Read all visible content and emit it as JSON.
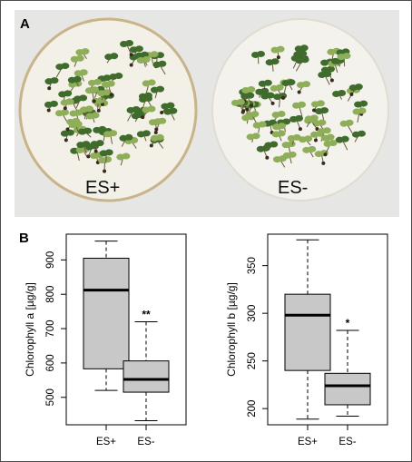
{
  "panels": {
    "a_label": "A",
    "b_label": "B"
  },
  "photo": {
    "left_dish_label": "ES+",
    "right_dish_label": "ES-"
  },
  "colors": {
    "box_fill": "#c8c8c8",
    "line": "#000000",
    "leaf_dark": "#3f6b2c",
    "leaf_light": "#8fae5a",
    "dish": "#f2efe6",
    "background": "#e8e8e8"
  },
  "chart_data": [
    {
      "type": "boxplot",
      "ylabel": "Chlorophyll a [µg/g]",
      "categories": [
        "ES+",
        "ES-"
      ],
      "yticks": [
        500,
        600,
        700,
        800,
        900
      ],
      "ylim": [
        420,
        975
      ],
      "boxes": [
        {
          "category": "ES+",
          "whisker_low": 520,
          "q1": 583,
          "median": 812,
          "q3": 905,
          "whisker_high": 955,
          "significance": ""
        },
        {
          "category": "ES-",
          "whisker_low": 432,
          "q1": 515,
          "median": 552,
          "q3": 606,
          "whisker_high": 720,
          "significance": "**"
        }
      ]
    },
    {
      "type": "boxplot",
      "ylabel": "Chlorophyll b [µg/g]",
      "categories": [
        "ES+",
        "ES-"
      ],
      "yticks": [
        200,
        250,
        300,
        350
      ],
      "ylim": [
        183,
        383
      ],
      "boxes": [
        {
          "category": "ES+",
          "whisker_low": 189,
          "q1": 240,
          "median": 298,
          "q3": 320,
          "whisker_high": 377,
          "significance": ""
        },
        {
          "category": "ES-",
          "whisker_low": 192,
          "q1": 204,
          "median": 224,
          "q3": 237,
          "whisker_high": 282,
          "significance": "*"
        }
      ]
    }
  ]
}
